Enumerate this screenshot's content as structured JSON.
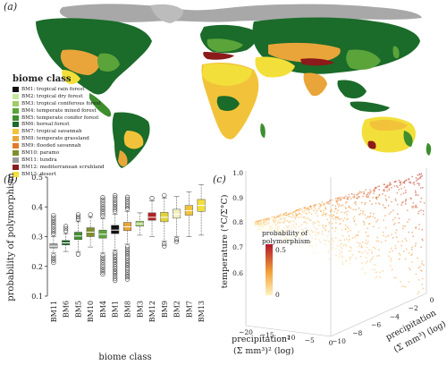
{
  "panels": {
    "a": {
      "label": "(a)"
    },
    "b": {
      "label": "(b)"
    },
    "c": {
      "label": "(c)"
    }
  },
  "legend": {
    "title": "biome class",
    "items": [
      {
        "label": "BM1: tropical rain forest",
        "color": "#111111"
      },
      {
        "label": "BM2: tropical dry forest",
        "color": "#c6e89a"
      },
      {
        "label": "BM3: tropical coniferous forest",
        "color": "#9fcb6a"
      },
      {
        "label": "BM4: temperate mixed forest",
        "color": "#5aa43a"
      },
      {
        "label": "BM5: temperate conifer forest",
        "color": "#3e8e2e"
      },
      {
        "label": "BM6: boreal forest",
        "color": "#1b6b2a"
      },
      {
        "label": "BM7: tropical savannah",
        "color": "#f2c33a"
      },
      {
        "label": "BM8: temperate grassland",
        "color": "#e9a53a"
      },
      {
        "label": "BM9: flooded savannah",
        "color": "#e07a2c"
      },
      {
        "label": "BM10: paramo",
        "color": "#7d8f2a"
      },
      {
        "label": "BM11: tundra",
        "color": "#9a9a9a"
      },
      {
        "label": "BM12: mediterranean scrubland",
        "color": "#8b1a1a"
      },
      {
        "label": "BM13: desert",
        "color": "#f3df3a"
      }
    ]
  },
  "chart_data": [
    {
      "type": "box",
      "panel": "b",
      "xlabel": "biome class",
      "ylabel": "probability of polymorphism",
      "categories": [
        "BM11",
        "BM6",
        "BM5",
        "BM10",
        "BM4",
        "BM1",
        "BM8",
        "BM3",
        "BM12",
        "BM9",
        "BM2",
        "BM7",
        "BM13"
      ],
      "ylim": [
        0.1,
        0.5
      ],
      "yticks": [
        0.1,
        0.2,
        0.3,
        0.4,
        0.5
      ],
      "boxes": [
        {
          "category": "BM11",
          "q1": 0.262,
          "median": 0.268,
          "q3": 0.276,
          "whisker_low": 0.245,
          "whisker_high": 0.3,
          "out_low": 0.205,
          "out_high": 0.375,
          "color": "#9a9a9a"
        },
        {
          "category": "BM6",
          "q1": 0.272,
          "median": 0.279,
          "q3": 0.287,
          "whisker_low": 0.25,
          "whisker_high": 0.31,
          "out_low": 0.245,
          "out_high": 0.335,
          "color": "#1b6b2a"
        },
        {
          "category": "BM5",
          "q1": 0.29,
          "median": 0.302,
          "q3": 0.315,
          "whisker_low": 0.25,
          "whisker_high": 0.35,
          "out_low": 0.24,
          "out_high": 0.375,
          "color": "#3e8e2e"
        },
        {
          "category": "BM10",
          "q1": 0.3,
          "median": 0.315,
          "q3": 0.33,
          "whisker_low": 0.265,
          "whisker_high": 0.365,
          "out_low": 0.265,
          "out_high": 0.375,
          "color": "#7d8f2a"
        },
        {
          "category": "BM4",
          "q1": 0.295,
          "median": 0.308,
          "q3": 0.322,
          "whisker_low": 0.245,
          "whisker_high": 0.36,
          "out_low": 0.17,
          "out_high": 0.435,
          "color": "#5aa43a"
        },
        {
          "category": "BM1",
          "q1": 0.31,
          "median": 0.322,
          "q3": 0.338,
          "whisker_low": 0.255,
          "whisker_high": 0.375,
          "out_low": 0.15,
          "out_high": 0.445,
          "color": "#111111"
        },
        {
          "category": "BM8",
          "q1": 0.32,
          "median": 0.333,
          "q3": 0.348,
          "whisker_low": 0.275,
          "whisker_high": 0.385,
          "out_low": 0.15,
          "out_high": 0.435,
          "color": "#e9a53a"
        },
        {
          "category": "BM3",
          "q1": 0.335,
          "median": 0.343,
          "q3": 0.352,
          "whisker_low": 0.305,
          "whisker_high": 0.38,
          "out_low": 0.305,
          "out_high": 0.385,
          "color": "#9fcb6a"
        },
        {
          "category": "BM12",
          "q1": 0.355,
          "median": 0.365,
          "q3": 0.38,
          "whisker_low": 0.3,
          "whisker_high": 0.42,
          "out_low": 0.3,
          "out_high": 0.43,
          "color": "#b22222"
        },
        {
          "category": "BM9",
          "q1": 0.35,
          "median": 0.365,
          "q3": 0.382,
          "whisker_low": 0.285,
          "whisker_high": 0.43,
          "out_low": 0.265,
          "out_high": 0.44,
          "color": "#e0d43a"
        },
        {
          "category": "BM2",
          "q1": 0.362,
          "median": 0.375,
          "q3": 0.392,
          "whisker_low": 0.3,
          "whisker_high": 0.435,
          "out_low": 0.28,
          "out_high": 0.44,
          "color": "#f3f0c0"
        },
        {
          "category": "BM7",
          "q1": 0.372,
          "median": 0.387,
          "q3": 0.405,
          "whisker_low": 0.3,
          "whisker_high": 0.45,
          "out_low": 0.3,
          "out_high": 0.455,
          "color": "#f2c33a"
        },
        {
          "category": "BM13",
          "q1": 0.385,
          "median": 0.405,
          "q3": 0.425,
          "whisker_low": 0.305,
          "whisker_high": 0.475,
          "out_low": 0.3,
          "out_high": 0.48,
          "color": "#f3df3a"
        }
      ]
    },
    {
      "type": "scatter3d",
      "panel": "c",
      "xlabel_line1": "precipitation²",
      "xlabel_line2": "(Σ mm³)² (log)",
      "ylabel_line1": "precipitation",
      "ylabel_line2": "(Σ mm³) (log)",
      "zlabel": "temperature (°C/Σ°C)",
      "x_ticks": [
        "−20",
        "−15",
        "−10",
        "−5",
        "0"
      ],
      "y_ticks": [
        "−10",
        "−8",
        "−6",
        "−4",
        "−2",
        "0"
      ],
      "z_ticks": [
        "0.6",
        "0.7",
        "0.8",
        "0.9",
        "1.0"
      ],
      "colorbar": {
        "title_line1": "probability of",
        "title_line2": "polymorphism",
        "max_label": "0.5",
        "min_label": "0",
        "low_color": "#fdf3c0",
        "high_color": "#b2182b"
      }
    }
  ]
}
